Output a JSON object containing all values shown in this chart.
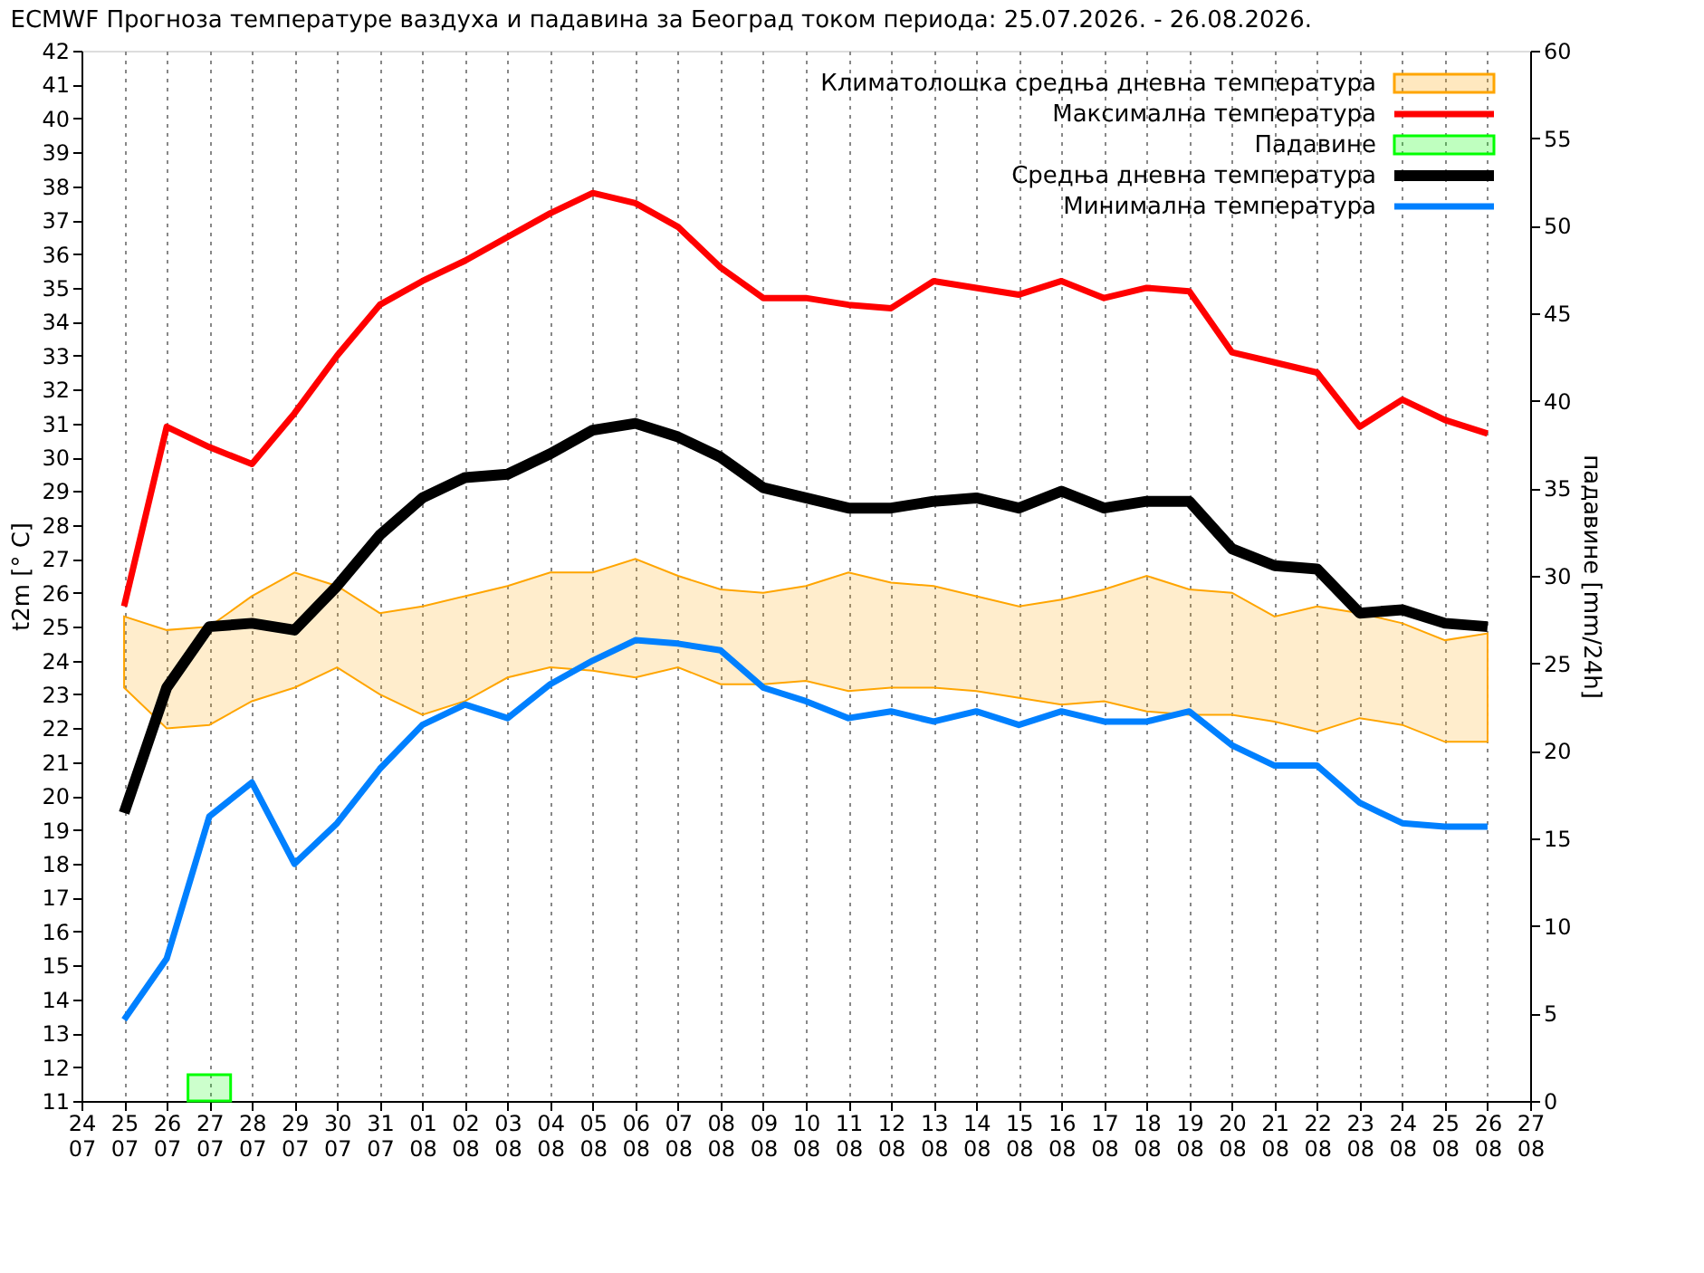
{
  "chart_data": {
    "type": "line",
    "title": "ECMWF Прогноза температуре ваздуха и падавина за Београд током периода: 25.07.2026. - 26.08.2026.",
    "ylabel": "t2m [° C]",
    "y2label": "падавине [mm/24h]",
    "categories": [
      "24\n07",
      "25\n07",
      "26\n07",
      "27\n07",
      "28\n07",
      "29\n07",
      "30\n07",
      "31\n07",
      "01\n08",
      "02\n08",
      "03\n08",
      "04\n08",
      "05\n08",
      "06\n08",
      "07\n08",
      "08\n08",
      "09\n08",
      "10\n08",
      "11\n08",
      "12\n08",
      "13\n08",
      "14\n08",
      "15\n08",
      "16\n08",
      "17\n08",
      "18\n08",
      "19\n08",
      "20\n08",
      "21\n08",
      "22\n08",
      "23\n08",
      "24\n08",
      "25\n08",
      "26\n08",
      "27\n08"
    ],
    "ylim": [
      11,
      42
    ],
    "yticks": [
      11,
      12,
      13,
      14,
      15,
      16,
      17,
      18,
      19,
      20,
      21,
      22,
      23,
      24,
      25,
      26,
      27,
      28,
      29,
      30,
      31,
      32,
      33,
      34,
      35,
      36,
      37,
      38,
      39,
      40,
      41,
      42
    ],
    "y2lim": [
      0,
      60
    ],
    "y2ticks": [
      0,
      5,
      10,
      15,
      20,
      25,
      30,
      35,
      40,
      45,
      50,
      55,
      60
    ],
    "grid": "x",
    "legend": "top right",
    "marker": "none",
    "line_style": "solid",
    "series": [
      {
        "name": "Климатолошка средња дневна температура",
        "type": "area",
        "color": "#ffa500",
        "lower": [
          null,
          23.2,
          22.0,
          22.1,
          22.8,
          23.2,
          23.8,
          23.0,
          22.4,
          22.8,
          23.5,
          23.8,
          23.7,
          23.5,
          23.8,
          23.3,
          23.3,
          23.4,
          23.1,
          23.2,
          23.2,
          23.1,
          22.9,
          22.7,
          22.8,
          22.5,
          22.4,
          22.4,
          22.2,
          21.9,
          22.3,
          22.1,
          21.6,
          21.6,
          null
        ],
        "values": [
          null,
          null,
          null,
          null,
          null,
          null,
          null,
          null,
          null,
          null,
          null,
          null,
          null,
          null,
          null,
          null,
          null,
          null,
          null,
          null,
          null,
          null,
          null,
          null,
          null,
          null,
          null,
          null,
          null,
          null,
          null,
          null,
          null,
          null,
          null
        ],
        "upper": [
          null,
          25.3,
          24.9,
          25.0,
          25.9,
          26.6,
          26.2,
          25.4,
          25.6,
          25.9,
          26.2,
          26.6,
          26.6,
          27.0,
          26.5,
          26.1,
          26.0,
          26.2,
          26.6,
          26.3,
          26.2,
          25.9,
          25.6,
          25.8,
          26.1,
          26.5,
          26.1,
          26.0,
          25.3,
          25.6,
          25.4,
          25.1,
          24.6,
          24.8,
          null
        ]
      },
      {
        "name": "Максимална температура",
        "color": "#ff0000",
        "values": [
          null,
          25.6,
          30.9,
          30.3,
          29.8,
          31.3,
          33.0,
          34.5,
          35.2,
          35.8,
          36.5,
          37.2,
          37.8,
          37.5,
          36.8,
          35.6,
          34.7,
          34.7,
          34.5,
          34.4,
          35.2,
          35.0,
          34.8,
          35.2,
          34.7,
          35.0,
          34.9,
          33.1,
          32.8,
          32.5,
          30.9,
          31.7,
          31.1,
          30.7,
          null
        ]
      },
      {
        "name": "Падавине",
        "type": "bar",
        "axis": "y2",
        "color": "#00ff00",
        "values": [
          null,
          null,
          null,
          1.5,
          null,
          null,
          null,
          null,
          null,
          null,
          null,
          null,
          null,
          null,
          null,
          null,
          null,
          null,
          null,
          null,
          null,
          null,
          null,
          null,
          null,
          null,
          null,
          null,
          null,
          null,
          null,
          null,
          null,
          null,
          null
        ]
      },
      {
        "name": "Средња дневна температура",
        "color": "#000000",
        "values": [
          null,
          19.5,
          23.2,
          25.0,
          25.1,
          24.9,
          26.2,
          27.7,
          28.8,
          29.4,
          29.5,
          30.1,
          30.8,
          31.0,
          30.6,
          30.0,
          29.1,
          28.8,
          28.5,
          28.5,
          28.7,
          28.8,
          28.5,
          29.0,
          28.5,
          28.7,
          28.7,
          27.3,
          26.8,
          26.7,
          25.4,
          25.5,
          25.1,
          25.0,
          null
        ]
      },
      {
        "name": "Минимална температура",
        "color": "#0080ff",
        "values": [
          null,
          13.4,
          15.2,
          19.4,
          20.4,
          18.0,
          19.2,
          20.8,
          22.1,
          22.7,
          22.3,
          23.3,
          24.0,
          24.6,
          24.5,
          24.3,
          23.2,
          22.8,
          22.3,
          22.5,
          22.2,
          22.5,
          22.1,
          22.5,
          22.2,
          22.2,
          22.5,
          21.5,
          20.9,
          20.9,
          19.8,
          19.2,
          19.1,
          19.1,
          null
        ]
      }
    ]
  }
}
